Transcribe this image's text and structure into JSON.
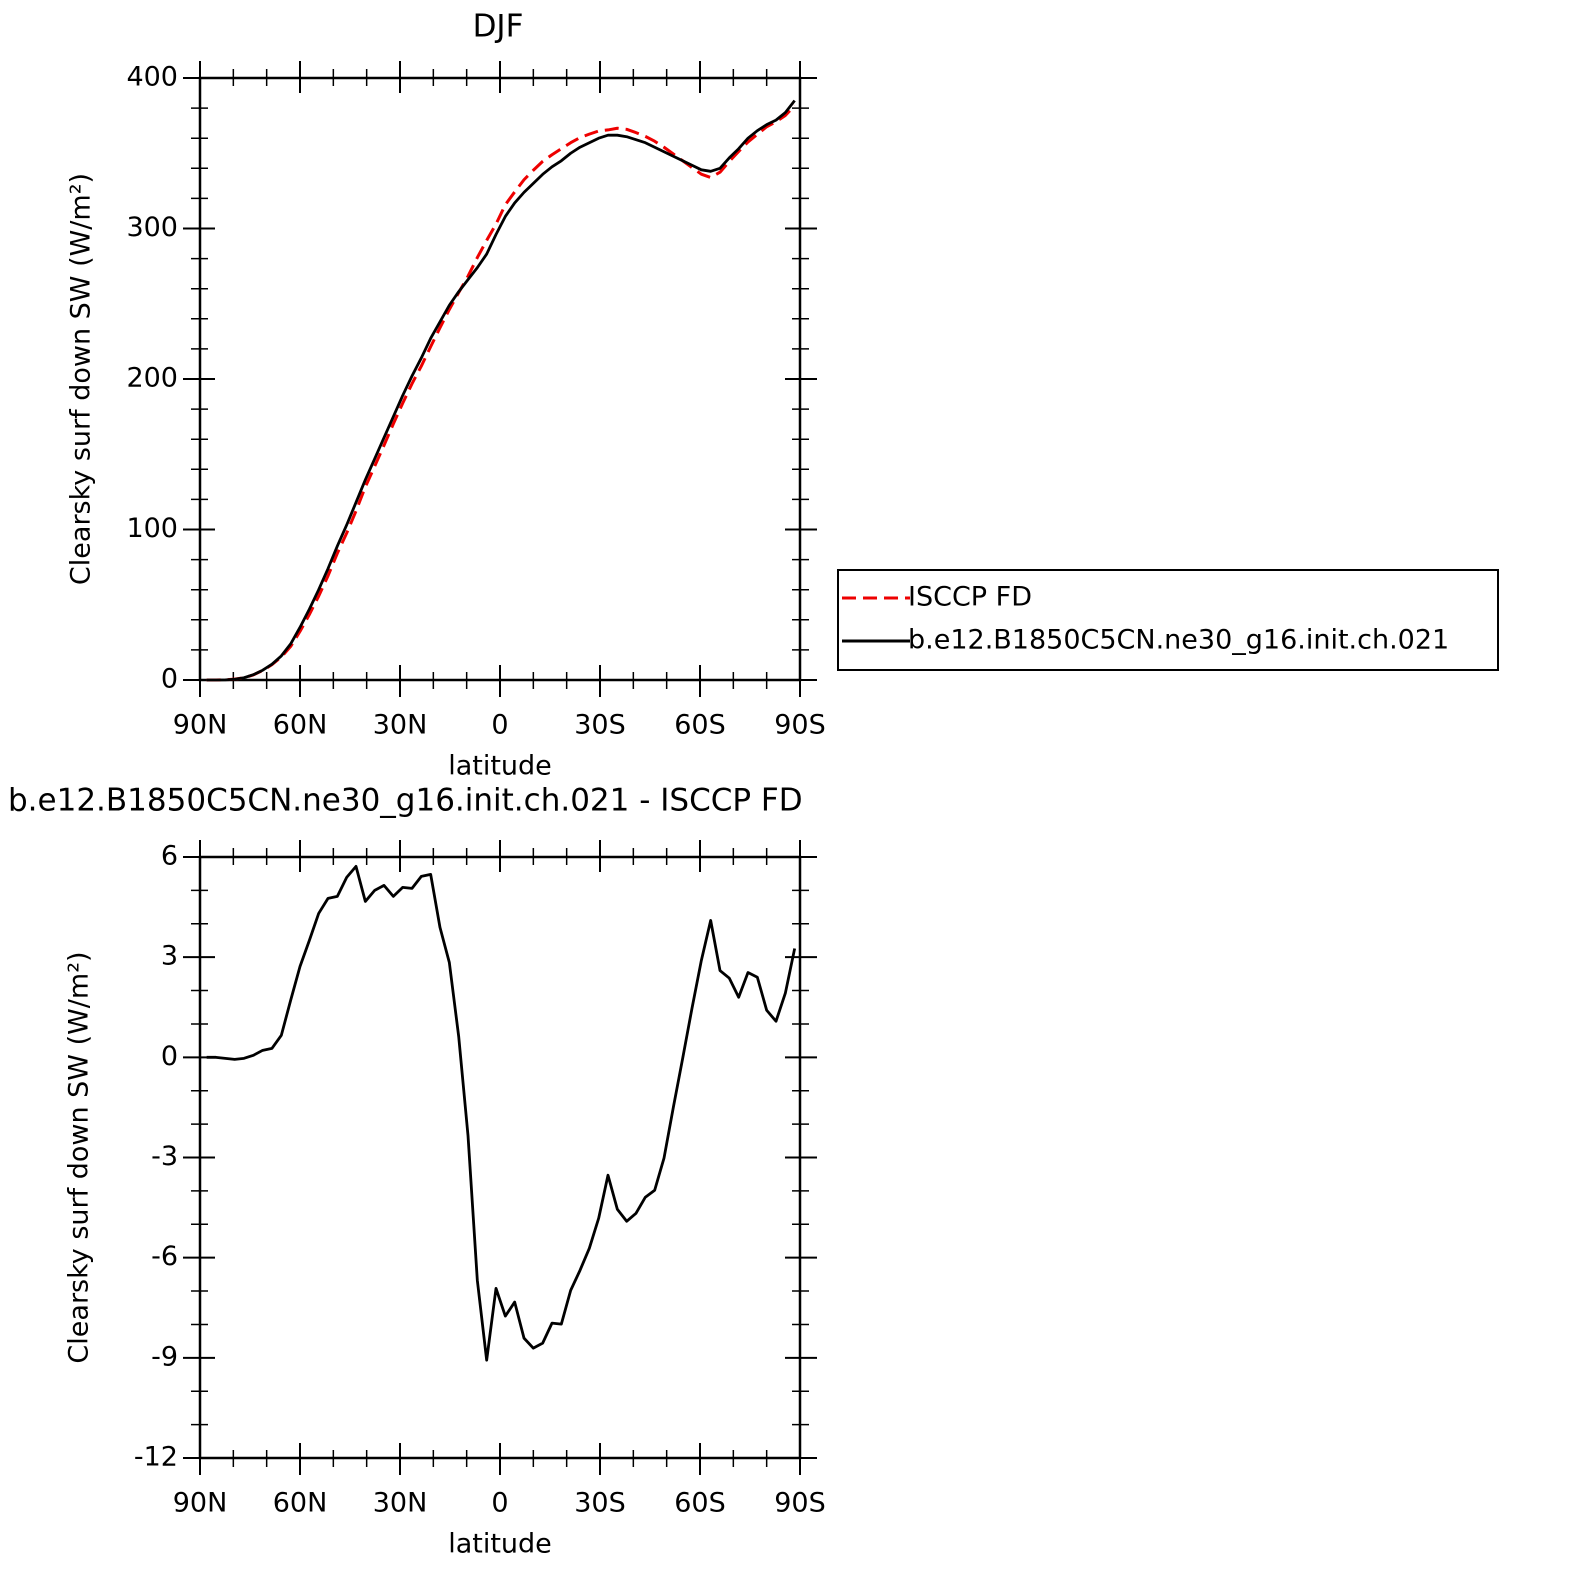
{
  "chart_data": [
    {
      "type": "line",
      "title": "DJF",
      "xlabel": "latitude",
      "ylabel": "Clearsky surf down SW (W/m²)",
      "x": [
        88,
        85.2,
        82.4,
        79.6,
        76.8,
        74,
        71.2,
        68.4,
        65.6,
        62.8,
        60,
        57.2,
        54.4,
        51.6,
        48.8,
        46,
        43.2,
        40.4,
        37.6,
        34.8,
        32,
        29.2,
        26.4,
        23.6,
        20.8,
        18,
        15.2,
        12.4,
        9.6,
        6.8,
        4,
        1.2,
        -1.6,
        -4.4,
        -7.2,
        -10,
        -12.8,
        -15.6,
        -18.4,
        -21.2,
        -24,
        -26.8,
        -29.6,
        -32.4,
        -35.2,
        -38,
        -40.8,
        -43.6,
        -46.4,
        -49.2,
        -52,
        -54.8,
        -57.6,
        -60.4,
        -63.2,
        -66,
        -68.8,
        -71.6,
        -74.4,
        -77.2,
        -80,
        -82.8,
        -85.6,
        -88.4
      ],
      "series": [
        {
          "name": "ISCCP FD",
          "color": "#ee0000",
          "dashed": true,
          "values": [
            0,
            0,
            0.1,
            0.6,
            1.5,
            3.4,
            6.3,
            10.2,
            15.3,
            22.3,
            32.3,
            43.5,
            55.7,
            69.2,
            84.2,
            97.6,
            112.3,
            128.3,
            142,
            155.9,
            170.2,
            183.9,
            196.9,
            208.6,
            221.5,
            234.1,
            246.2,
            257.4,
            268.3,
            280.7,
            292.1,
            302.9,
            315.8,
            324.3,
            332.4,
            338.7,
            344.6,
            349,
            353,
            357,
            360.4,
            362.7,
            364.8,
            365.5,
            366.6,
            365.9,
            363.7,
            361.2,
            358,
            354,
            349.5,
            345,
            340.5,
            336.1,
            333.9,
            337.4,
            344.6,
            351.2,
            357.5,
            362.6,
            367.6,
            370.9,
            375.1,
            381.7
          ]
        },
        {
          "name": "b.e12.B1850C5CN.ne30_g16.init.ch.021",
          "color": "#000000",
          "dashed": false,
          "values": [
            0,
            0,
            0.1,
            0.5,
            1.5,
            3.5,
            6.5,
            10.5,
            16,
            24,
            35,
            47,
            60,
            74,
            89,
            103,
            118,
            133,
            147,
            161,
            175,
            189,
            202,
            214,
            227,
            238,
            249,
            258,
            266,
            274,
            283,
            296,
            308,
            317,
            324,
            330,
            336,
            341,
            345,
            350,
            354,
            357,
            360,
            362,
            362,
            361,
            359,
            357,
            354,
            351,
            348,
            345,
            342,
            339,
            338,
            340,
            347,
            353,
            360,
            365,
            369,
            372,
            377,
            385
          ]
        }
      ],
      "xlim": [
        90,
        -90
      ],
      "xticks": [
        {
          "value": 90,
          "label": "90N"
        },
        {
          "value": 60,
          "label": "60N"
        },
        {
          "value": 30,
          "label": "30N"
        },
        0,
        {
          "value": -30,
          "label": "30S"
        },
        {
          "value": -60,
          "label": "60S"
        },
        {
          "value": -90,
          "label": "90S"
        }
      ],
      "ylim": [
        0,
        400
      ],
      "yticks": [
        0,
        100,
        200,
        300,
        400
      ],
      "legend": "right"
    },
    {
      "type": "line",
      "title": "b.e12.B1850C5CN.ne30_g16.init.ch.021 - ISCCP FD",
      "xlabel": "latitude",
      "ylabel": "Clearsky surf down SW (W/m²)",
      "x": [
        88,
        85.2,
        82.4,
        79.6,
        76.8,
        74,
        71.2,
        68.4,
        65.6,
        62.8,
        60,
        57.2,
        54.4,
        51.6,
        48.8,
        46,
        43.2,
        40.4,
        37.6,
        34.8,
        32,
        29.2,
        26.4,
        23.6,
        20.8,
        18,
        15.2,
        12.4,
        9.6,
        6.8,
        4,
        1.2,
        -1.6,
        -4.4,
        -7.2,
        -10,
        -12.8,
        -15.6,
        -18.4,
        -21.2,
        -24,
        -26.8,
        -29.6,
        -32.4,
        -35.2,
        -38,
        -40.8,
        -43.6,
        -46.4,
        -49.2,
        -52,
        -54.8,
        -57.6,
        -60.4,
        -63.2,
        -66,
        -68.8,
        -71.6,
        -74.4,
        -77.2,
        -80,
        -82.8,
        -85.6,
        -88.4
      ],
      "series": [
        {
          "color": "#000000",
          "dashed": false,
          "values": [
            0,
            0,
            -0.03,
            -0.06,
            -0.03,
            0.06,
            0.21,
            0.27,
            0.66,
            1.71,
            2.72,
            3.5,
            4.31,
            4.76,
            4.82,
            5.39,
            5.72,
            4.67,
            5,
            5.15,
            4.82,
            5.09,
            5.06,
            5.42,
            5.48,
            3.89,
            2.84,
            0.63,
            -2.34,
            -6.68,
            -9.07,
            -6.92,
            -7.75,
            -7.33,
            -8.41,
            -8.71,
            -8.56,
            -7.96,
            -7.99,
            -6.98,
            -6.38,
            -5.72,
            -4.82,
            -3.53,
            -4.55,
            -4.91,
            -4.67,
            -4.19,
            -3.98,
            -3.02,
            -1.5,
            -0.03,
            1.47,
            2.9,
            4.1,
            2.6,
            2.37,
            1.8,
            2.54,
            2.4,
            1.41,
            1.08,
            1.92,
            3.26
          ]
        }
      ],
      "xlim": [
        90,
        -90
      ],
      "xticks": [
        {
          "value": 90,
          "label": "90N"
        },
        {
          "value": 60,
          "label": "60N"
        },
        {
          "value": 30,
          "label": "30N"
        },
        0,
        {
          "value": -30,
          "label": "30S"
        },
        {
          "value": -60,
          "label": "60S"
        },
        {
          "value": -90,
          "label": "90S"
        }
      ],
      "ylim": [
        -12,
        6
      ],
      "yticks": [
        -12,
        -9,
        -6,
        -3,
        0,
        3,
        6
      ]
    }
  ]
}
